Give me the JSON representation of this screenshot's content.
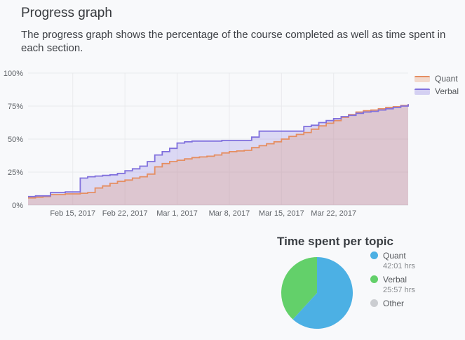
{
  "header": {
    "title": "Progress graph",
    "description": "The progress graph shows the percentage of the course completed as well as time spent in each section."
  },
  "colors": {
    "background": "#f8f9fb",
    "quant_line": "#e58e62",
    "verbal_line": "#8070dd",
    "pie_quant": "#4cb0e4",
    "pie_verbal": "#63d06a",
    "pie_other": "#cbcdd1",
    "grid": "#e9eaed",
    "axis_text": "#5f6368"
  },
  "pie_section": {
    "title": "Time spent per topic"
  },
  "chart_data": [
    {
      "type": "area",
      "subtype": "step",
      "title": "Progress graph",
      "xlabel": "",
      "ylabel": "",
      "ylim": [
        0,
        100
      ],
      "grid": true,
      "legend_position": "top-right",
      "y_ticks": [
        "0%",
        "25%",
        "50%",
        "75%",
        "100%"
      ],
      "y_tick_values": [
        0,
        25,
        50,
        75,
        100
      ],
      "x_ticks": [
        "Feb 15, 2017",
        "Feb 22, 2017",
        "Mar 1, 2017",
        "Mar 8, 2017",
        "Mar 15, 2017",
        "Mar 22, 2017"
      ],
      "x_tick_days": [
        6,
        13,
        20,
        27,
        34,
        41
      ],
      "x_days_total": 51,
      "series": [
        {
          "name": "Quant",
          "color": "#e58e62",
          "values": [
            5.5,
            6,
            6.5,
            8,
            8,
            8.5,
            8.5,
            9,
            9.5,
            13,
            14.5,
            16.5,
            18,
            19,
            20.5,
            21.5,
            23.5,
            29,
            31.5,
            33,
            34,
            35,
            36,
            36.5,
            37,
            38,
            39.5,
            40.5,
            41,
            41.5,
            43.5,
            45,
            46.5,
            48,
            50,
            52,
            53.5,
            55,
            57.5,
            60,
            62,
            64,
            66.5,
            68.5,
            70.5,
            71.5,
            72,
            73,
            74,
            74.5,
            75.5,
            76.5
          ]
        },
        {
          "name": "Verbal",
          "color": "#8070dd",
          "values": [
            6.5,
            7,
            7,
            9.5,
            9.5,
            10,
            10,
            20.5,
            21.5,
            22,
            22.5,
            23,
            24,
            26,
            27.5,
            29.5,
            33,
            38,
            40.5,
            43,
            47,
            48,
            48.5,
            48.5,
            48.5,
            48.5,
            49,
            49,
            49,
            49,
            51.5,
            56,
            56,
            56,
            56,
            56,
            56,
            59.5,
            60.5,
            62.5,
            64,
            65.5,
            67,
            68,
            69.5,
            70.5,
            71,
            72,
            73,
            74,
            75,
            76.5
          ]
        }
      ]
    },
    {
      "type": "pie",
      "title": "Time spent per topic",
      "labels": [
        "Quant",
        "Verbal",
        "Other"
      ],
      "values_hours": [
        42.02,
        25.95,
        0
      ],
      "values_display": [
        "42:01 hrs",
        "25:57 hrs",
        ""
      ],
      "colors": [
        "#4cb0e4",
        "#63d06a",
        "#cbcdd1"
      ],
      "start_angle_deg": 0,
      "direction": "clockwise",
      "legend_position": "right"
    }
  ]
}
